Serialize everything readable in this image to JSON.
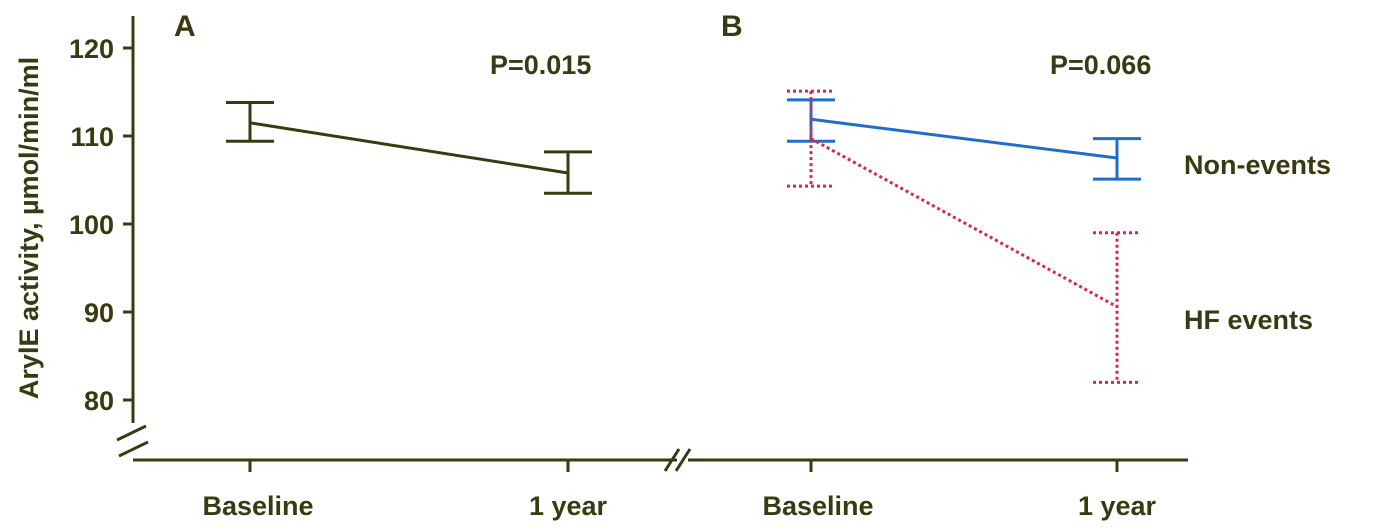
{
  "colors": {
    "axis": "#3a3a12",
    "panel_a": "#3a3a12",
    "non_events": "#1f6fc9",
    "hf_events": "#e0234a"
  },
  "ylabel": "ArylE activity, µmol/min/ml",
  "chart_data": [
    {
      "type": "line",
      "panel_label": "A",
      "annotation": "P=0.015",
      "categories": [
        "Baseline",
        "1 year"
      ],
      "ylabel": "ArylE activity, µmol/min/ml",
      "ylim": [
        76,
        122
      ],
      "yticks": [
        80,
        90,
        100,
        110,
        120
      ],
      "axis_break": true,
      "series": [
        {
          "values": [
            111.5,
            105.8
          ],
          "error_low": [
            109.4,
            103.5
          ],
          "error_high": [
            113.8,
            108.2
          ],
          "style": "solid"
        }
      ]
    },
    {
      "type": "line",
      "panel_label": "B",
      "annotation": "P=0.066",
      "categories": [
        "Baseline",
        "1 year"
      ],
      "ylim": [
        76,
        122
      ],
      "series": [
        {
          "name": "Non-events",
          "values": [
            111.9,
            107.5
          ],
          "error_low": [
            109.4,
            105.1
          ],
          "error_high": [
            114.1,
            109.7
          ],
          "style": "solid"
        },
        {
          "name": "HF events",
          "values": [
            109.7,
            90.6
          ],
          "error_low": [
            104.3,
            82.0
          ],
          "error_high": [
            115.1,
            99.0
          ],
          "style": "dotted"
        }
      ]
    }
  ]
}
